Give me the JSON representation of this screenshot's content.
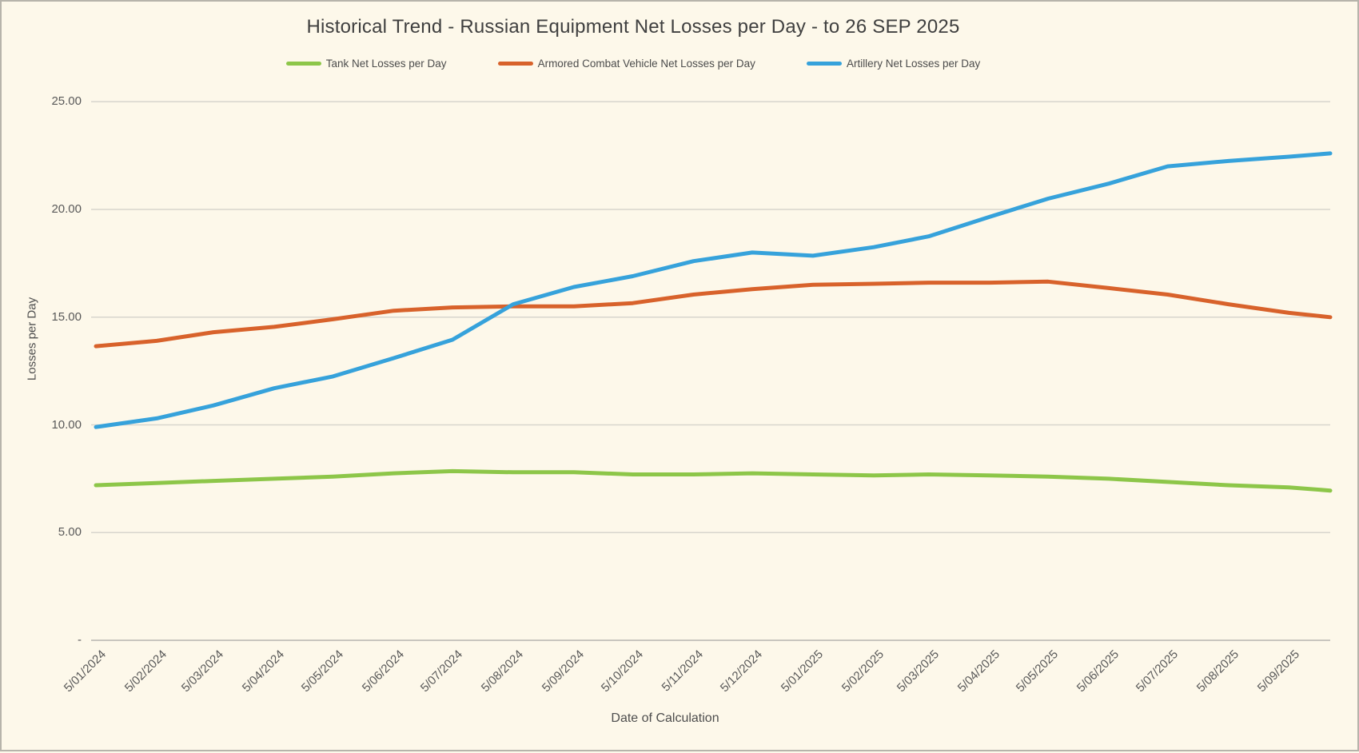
{
  "title": "Historical Trend - Russian Equipment Net Losses per Day - to 26 SEP 2025",
  "legend": {
    "items": [
      {
        "label": "Tank Net Losses per Day",
        "color": "#8DC649"
      },
      {
        "label": "Armored Combat Vehicle Net Losses per Day",
        "color": "#D8622B"
      },
      {
        "label": "Artillery Net Losses per Day",
        "color": "#36A2DB"
      }
    ]
  },
  "axes": {
    "y_title": "Losses per Day",
    "x_title": "Date of Calculation",
    "y_tick_labels": [
      "25.00",
      "20.00",
      "15.00",
      "10.00",
      "5.00",
      "-"
    ],
    "y_tick_values": [
      25,
      20,
      15,
      10,
      5,
      0
    ]
  },
  "colors": {
    "background": "#FDF8EA",
    "border": "#B7B4AB",
    "gridline": "#D8D5CD",
    "baseline": "#C9C6BF",
    "text": "#595959"
  },
  "chart_data": {
    "type": "line",
    "title": "Historical Trend - Russian Equipment Net Losses per Day - to 26 SEP 2025",
    "xlabel": "Date of Calculation",
    "ylabel": "Losses per Day",
    "ylim": [
      0,
      25
    ],
    "grid": "horizontal-only",
    "legend_position": "top",
    "x_tick_labels": [
      "5/01/2024",
      "5/02/2024",
      "5/03/2024",
      "5/04/2024",
      "5/05/2024",
      "5/06/2024",
      "5/07/2024",
      "5/08/2024",
      "5/09/2024",
      "5/10/2024",
      "5/11/2024",
      "5/12/2024",
      "5/01/2025",
      "5/02/2025",
      "5/03/2025",
      "5/04/2025",
      "5/05/2025",
      "5/06/2025",
      "5/07/2025",
      "5/08/2025",
      "5/09/2025"
    ],
    "x_day_offsets": [
      0,
      31,
      60,
      91,
      121,
      152,
      182,
      213,
      244,
      274,
      305,
      335,
      366,
      397,
      425,
      456,
      486,
      517,
      547,
      578,
      609
    ],
    "final_point_day_offset": 630,
    "final_point_label": "26 SEP 2025",
    "series": [
      {
        "name": "Tank Net Losses per Day",
        "color": "#8DC649",
        "values": [
          7.2,
          7.3,
          7.4,
          7.5,
          7.6,
          7.75,
          7.85,
          7.8,
          7.8,
          7.7,
          7.7,
          7.75,
          7.7,
          7.65,
          7.7,
          7.65,
          7.6,
          7.5,
          7.35,
          7.2,
          7.1,
          6.95
        ]
      },
      {
        "name": "Armored Combat Vehicle Net Losses per Day",
        "color": "#D8622B",
        "values": [
          13.65,
          13.9,
          14.3,
          14.55,
          14.9,
          15.3,
          15.45,
          15.5,
          15.5,
          15.65,
          16.05,
          16.3,
          16.5,
          16.55,
          16.6,
          16.6,
          16.65,
          16.35,
          16.05,
          15.6,
          15.2,
          15.0
        ]
      },
      {
        "name": "Artillery Net Losses per Day",
        "color": "#36A2DB",
        "values": [
          9.9,
          10.3,
          10.9,
          11.7,
          12.25,
          13.1,
          13.95,
          15.6,
          16.4,
          16.9,
          17.6,
          18.0,
          17.85,
          18.25,
          18.75,
          19.65,
          20.5,
          21.2,
          22.0,
          22.25,
          22.45,
          22.6
        ]
      }
    ]
  }
}
